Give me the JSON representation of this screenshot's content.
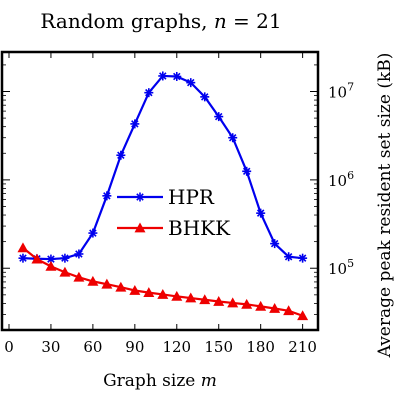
{
  "chart_data": {
    "type": "line",
    "title": "Random graphs, n = 21",
    "title_prefix": "Random graphs, ",
    "title_var": "n",
    "title_eq": " = 21",
    "xlabel_prefix": "Graph size ",
    "xlabel_var": "m",
    "ylabel": "Average peak resident set size (kB)",
    "xlim": [
      -5,
      221
    ],
    "ylim": [
      20000,
      28000000
    ],
    "yscale": "log",
    "x_ticks": [
      0,
      30,
      60,
      90,
      120,
      150,
      180,
      210
    ],
    "x_tick_labels": [
      "0",
      "30",
      "60",
      "90",
      "120",
      "150",
      "180",
      "210"
    ],
    "y_ticks": [
      100000,
      1000000,
      10000000
    ],
    "y_tick_labels": [
      {
        "base": "10",
        "exp": "5"
      },
      {
        "base": "10",
        "exp": "6"
      },
      {
        "base": "10",
        "exp": "7"
      }
    ],
    "x": [
      10,
      20,
      30,
      40,
      50,
      60,
      70,
      80,
      90,
      100,
      110,
      120,
      130,
      140,
      150,
      160,
      170,
      180,
      190,
      200,
      210
    ],
    "series": [
      {
        "name": "HPR",
        "color": "#0000ee",
        "marker": "asterisk",
        "values": [
          130000,
          128000,
          127000,
          130000,
          145000,
          250000,
          660000,
          1900000,
          4300000,
          9700000,
          15000000,
          14800000,
          12600000,
          8700000,
          5200000,
          3000000,
          1250000,
          420000,
          190000,
          135000,
          130000
        ]
      },
      {
        "name": "BHKK",
        "color": "#ee0000",
        "marker": "triangle",
        "values": [
          170000,
          127000,
          105000,
          90000,
          79000,
          71000,
          66000,
          61000,
          56000,
          53000,
          50500,
          48000,
          46000,
          44000,
          42000,
          40500,
          39000,
          37000,
          35000,
          33000,
          29000
        ]
      }
    ],
    "legend_position": "center",
    "grid": false
  }
}
